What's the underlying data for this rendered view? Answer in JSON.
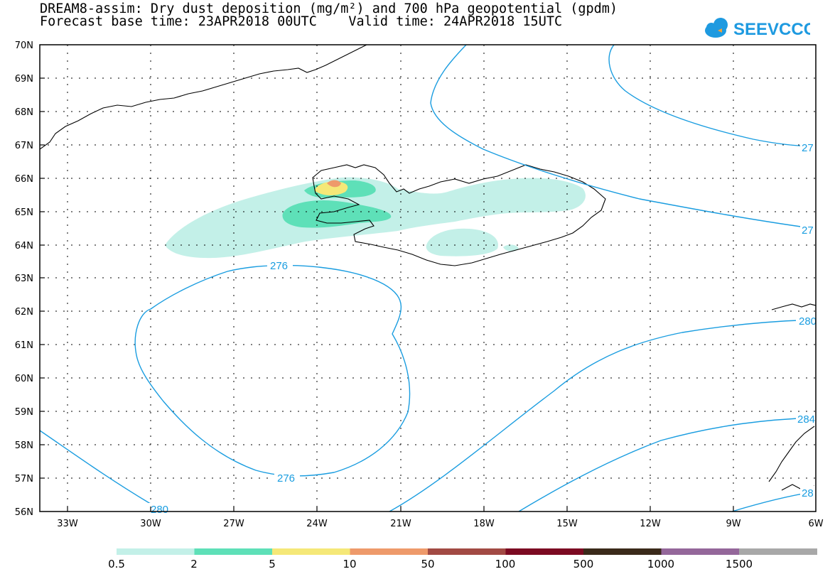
{
  "title": {
    "line1": "DREAM8-assim: Dry dust deposition (mg/m²) and 700 hPa geopotential (gpdm)",
    "line2": "Forecast base time: 23APR2018 00UTC    Valid time: 24APR2018 15UTC"
  },
  "logo": {
    "text": "SEEVCCC",
    "icon": "cloud-icon",
    "color": "#1e9ae0",
    "accent": "#f2a33a"
  },
  "map": {
    "lon_range": [
      -34,
      -6
    ],
    "lat_range": [
      56,
      70
    ],
    "lon_ticks": [
      "33W",
      "30W",
      "27W",
      "24W",
      "21W",
      "18W",
      "15W",
      "12W",
      "9W",
      "6W"
    ],
    "lat_ticks": [
      "70N",
      "69N",
      "68N",
      "67N",
      "66N",
      "65N",
      "64N",
      "63N",
      "62N",
      "61N",
      "60N",
      "59N",
      "58N",
      "57N",
      "56N"
    ],
    "grid": true,
    "contour_color": "#1a9de0",
    "contour_labels": [
      "276",
      "276",
      "280",
      "280",
      "284",
      "27",
      "27",
      "28"
    ]
  },
  "colorbar": {
    "colors": [
      "#c3f0e8",
      "#5ee0b8",
      "#f5e878",
      "#ee9a6b",
      "#a24a44",
      "#7c0a22",
      "#3a2a1a",
      "#94679a",
      "#a8a8a8"
    ],
    "labels": [
      "0.5",
      "2",
      "5",
      "10",
      "50",
      "100",
      "500",
      "1000",
      "1500"
    ]
  }
}
